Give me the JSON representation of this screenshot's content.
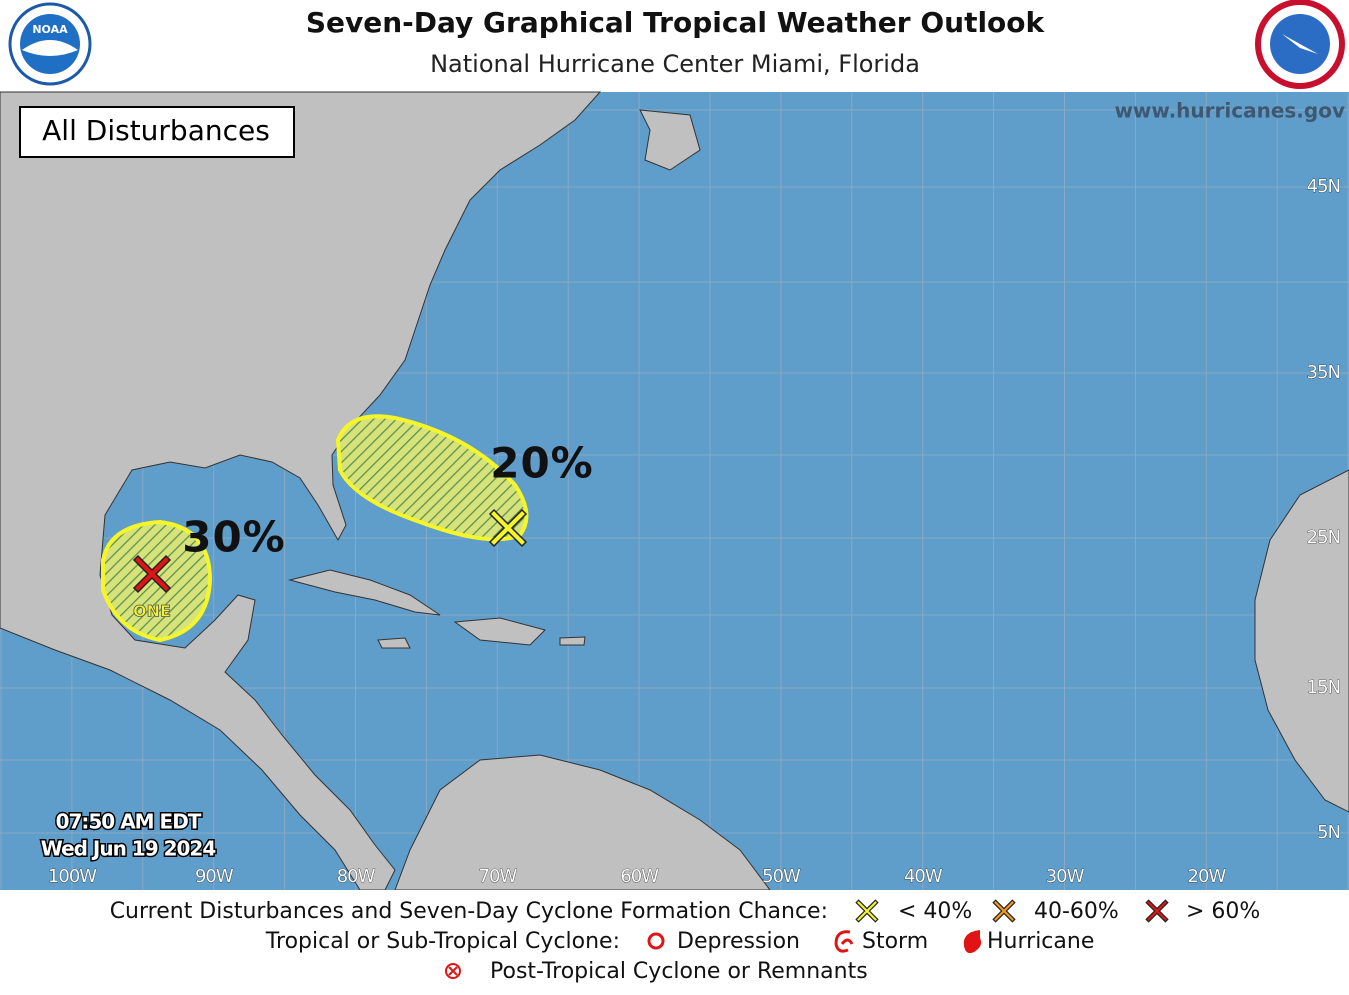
{
  "header": {
    "title": "Seven-Day Graphical Tropical Weather Outlook",
    "subtitle": "National Hurricane Center  Miami, Florida",
    "noaa_logo": "NOAA"
  },
  "map": {
    "panel_label": "All Disturbances",
    "website": "www.hurricanes.gov",
    "lat_labels": [
      "45N",
      "35N",
      "25N",
      "15N",
      "5N"
    ],
    "lon_labels": [
      "100W",
      "90W",
      "80W",
      "70W",
      "60W",
      "50W",
      "40W",
      "30W",
      "20W"
    ],
    "timestamp": [
      "07:50 AM EDT",
      "Wed Jun 19 2024"
    ],
    "disturbances": [
      {
        "chance": "30%",
        "label": "ONE"
      },
      {
        "chance": "20%"
      }
    ]
  },
  "legend": {
    "formation_title": "Current Disturbances and Seven-Day Cyclone Formation Chance:",
    "formation": [
      "< 40%",
      "40-60%",
      "> 60%"
    ],
    "cyclone_title": "Tropical or Sub-Tropical Cyclone:",
    "cyclone": [
      "Depression",
      "Storm",
      "Hurricane"
    ],
    "post_tropical": "Post-Tropical Cyclone or Remnants"
  }
}
